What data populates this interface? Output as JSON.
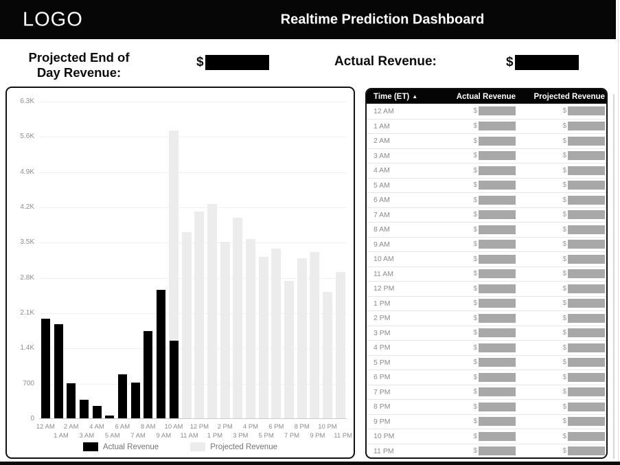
{
  "header": {
    "logo": "LOGO",
    "title": "Realtime Prediction Dashboard"
  },
  "kpi": {
    "projected": {
      "label": "Projected End of Day Revenue:",
      "currency": "$",
      "value_masked": true
    },
    "actual": {
      "label": "Actual Revenue:",
      "currency": "$",
      "value_masked": true
    }
  },
  "chart_data": {
    "type": "bar",
    "x": [
      "12 AM",
      "1 AM",
      "2 AM",
      "3 AM",
      "4 AM",
      "5 AM",
      "6 AM",
      "7 AM",
      "8 AM",
      "9 AM",
      "10 AM",
      "11 AM",
      "12 PM",
      "1 PM",
      "2 PM",
      "3 PM",
      "4 PM",
      "5 PM",
      "6 PM",
      "7 PM",
      "8 PM",
      "9 PM",
      "10 PM",
      "11 PM"
    ],
    "series": [
      {
        "name": "Actual Revenue",
        "color": "#000000",
        "values": [
          1980,
          1870,
          700,
          370,
          250,
          60,
          870,
          710,
          1730,
          2550,
          1540,
          null,
          null,
          null,
          null,
          null,
          null,
          null,
          null,
          null,
          null,
          null,
          null,
          null
        ]
      },
      {
        "name": "Projected Revenue",
        "color": "#ececec",
        "values": [
          null,
          null,
          null,
          null,
          null,
          null,
          null,
          null,
          null,
          null,
          5720,
          3700,
          4100,
          4250,
          3500,
          3980,
          3560,
          3200,
          3370,
          2730,
          3180,
          3300,
          2510,
          2910
        ]
      }
    ],
    "ylim": [
      0,
      6300
    ],
    "yticks": [
      {
        "v": 0,
        "label": "0"
      },
      {
        "v": 700,
        "label": "700"
      },
      {
        "v": 1400,
        "label": "1.4K"
      },
      {
        "v": 2100,
        "label": "2.1K"
      },
      {
        "v": 2800,
        "label": "2.8K"
      },
      {
        "v": 3500,
        "label": "3.5K"
      },
      {
        "v": 4200,
        "label": "4.2K"
      },
      {
        "v": 4900,
        "label": "4.9K"
      },
      {
        "v": 5600,
        "label": "5.6K"
      },
      {
        "v": 6300,
        "label": "6.3K"
      }
    ],
    "grid": true,
    "legend_position": "bottom"
  },
  "table": {
    "columns": [
      {
        "label": "Time (ET)",
        "sorted": "asc"
      },
      {
        "label": "Actual Revenue"
      },
      {
        "label": "Projected Revenue"
      }
    ],
    "sort_icon": "▲",
    "currency": "$",
    "values_masked": true,
    "rows": [
      "12 AM",
      "1 AM",
      "2 AM",
      "3 AM",
      "4 AM",
      "5 AM",
      "6 AM",
      "7 AM",
      "8 AM",
      "9 AM",
      "10 AM",
      "11 AM",
      "12 PM",
      "1 PM",
      "2 PM",
      "3 PM",
      "4 PM",
      "5 PM",
      "6 PM",
      "7 PM",
      "8 PM",
      "9 PM",
      "10 PM",
      "11 PM"
    ]
  },
  "colors": {
    "header_bg": "#060606",
    "actual_bar": "#000000",
    "projected_bar": "#ececec",
    "masked_table_box": "#a8a8a8",
    "masked_kpi_box": "#000000"
  }
}
